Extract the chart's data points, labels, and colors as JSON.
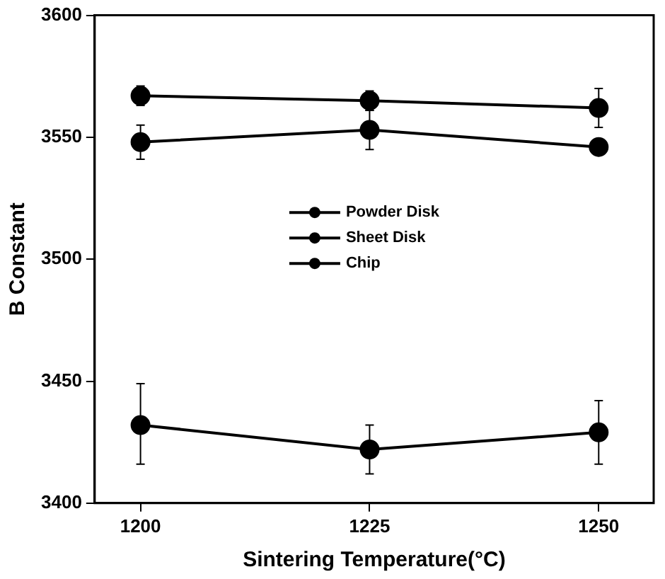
{
  "chart_data": {
    "type": "line",
    "xlabel": "Sintering Temperature(°C)",
    "ylabel": "B Constant",
    "x": [
      1200,
      1225,
      1250
    ],
    "series": [
      {
        "name": "Powder Disk",
        "color": "#000000",
        "values": [
          3567,
          3565,
          3562
        ],
        "errors": [
          4,
          4,
          8
        ]
      },
      {
        "name": "Sheet Disk",
        "color": "#000000",
        "values": [
          3548,
          3553,
          3546
        ],
        "errors": [
          7,
          8,
          3
        ]
      },
      {
        "name": "Chip",
        "color": "#000000",
        "values": [
          3432,
          3422,
          3429
        ],
        "errors": [
          [
            3416,
            3449
          ],
          10,
          13
        ]
      }
    ],
    "xlim": [
      1195,
      1256
    ],
    "xticks": [
      1200,
      1225,
      1250
    ],
    "ylim": [
      3400,
      3600
    ],
    "yticks": [
      3400,
      3450,
      3500,
      3550,
      3600
    ],
    "grid": false,
    "legend": "center",
    "marker": "circle",
    "line_style": "solid"
  }
}
